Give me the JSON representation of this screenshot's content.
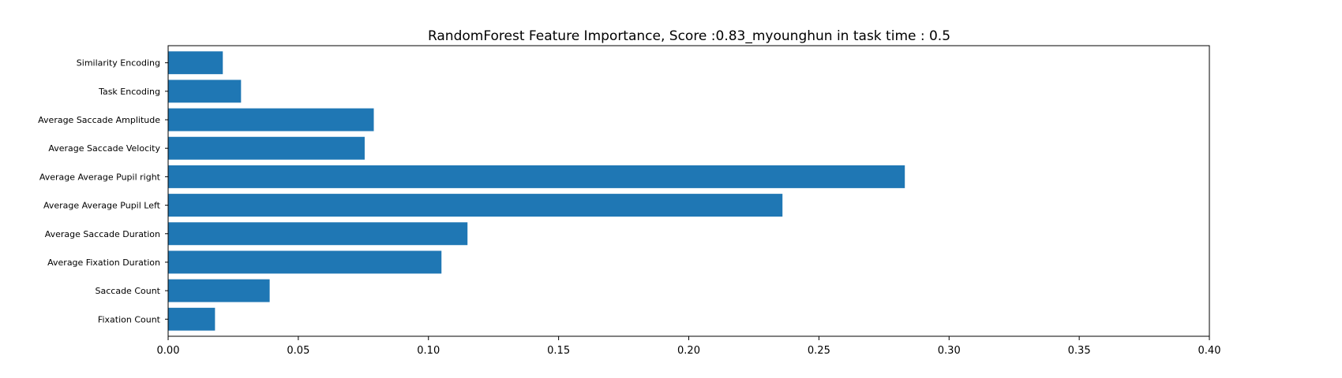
{
  "chart_data": {
    "type": "bar",
    "orientation": "horizontal",
    "title": "RandomForest Feature Importance, Score :0.83_myounghun in task time : 0.5",
    "xlabel": "",
    "ylabel": "",
    "xlim": [
      0,
      0.4
    ],
    "xticks": [
      "0.00",
      "0.05",
      "0.10",
      "0.15",
      "0.20",
      "0.25",
      "0.30",
      "0.35",
      "0.40"
    ],
    "grid": false,
    "color": "#1f77b4",
    "categories": [
      "Fixation Count",
      "Saccade Count",
      "Average Fixation Duration",
      "Average Saccade Duration",
      "Average Average Pupil Left",
      "Average Average Pupil right",
      "Average Saccade Velocity",
      "Average Saccade Amplitude",
      "Task Encoding",
      "Similarity Encoding"
    ],
    "values": [
      0.018,
      0.039,
      0.105,
      0.115,
      0.236,
      0.283,
      0.0755,
      0.079,
      0.028,
      0.021
    ]
  }
}
